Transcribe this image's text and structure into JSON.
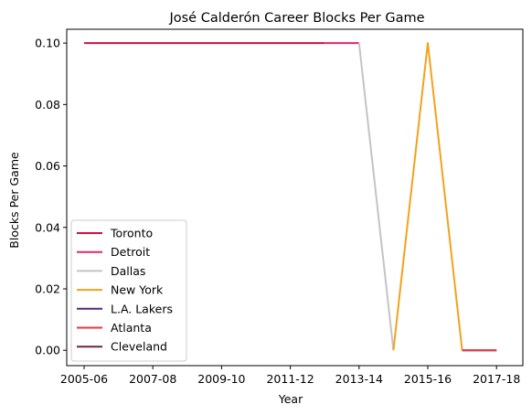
{
  "chart_data": {
    "type": "line",
    "title": "José Calderón  Career Blocks Per Game",
    "xlabel": "Year",
    "ylabel": "Blocks Per Game",
    "x_ticks": [
      "2005-06",
      "2007-08",
      "2009-10",
      "2011-12",
      "2013-14",
      "2015-16",
      "2017-18"
    ],
    "ylim": [
      -0.005,
      0.1045
    ],
    "y_ticks": [
      "0.00",
      "0.02",
      "0.04",
      "0.06",
      "0.08",
      "0.10"
    ],
    "grid": false,
    "legend_position": "lower-left",
    "series": [
      {
        "name": "Toronto",
        "color": "#ce1141",
        "points": [
          [
            "2005-06",
            0.1
          ],
          [
            "2012-13",
            0.1
          ]
        ]
      },
      {
        "name": "Detroit",
        "color": "#e0256e",
        "points": [
          [
            "2012-13",
            0.1
          ],
          [
            "2013-14",
            0.1
          ]
        ]
      },
      {
        "name": "Dallas",
        "color": "#c4c4c4",
        "points": [
          [
            "2013-14",
            0.1
          ],
          [
            "2014-15",
            0.0
          ]
        ]
      },
      {
        "name": "New York",
        "color": "#f4a11d",
        "points": [
          [
            "2014-15",
            0.0
          ],
          [
            "2015-16",
            0.1
          ],
          [
            "2016-17",
            0.0
          ]
        ]
      },
      {
        "name": "L.A. Lakers",
        "color": "#552583",
        "points": [
          [
            "2016-17",
            0.0
          ],
          [
            "2017-18",
            0.0
          ]
        ]
      },
      {
        "name": "Atlanta",
        "color": "#e03a3e",
        "points": [
          [
            "2016-17",
            0.0
          ],
          [
            "2017-18",
            0.0
          ]
        ]
      },
      {
        "name": "Cleveland",
        "color": "#6f263d",
        "points": []
      }
    ]
  }
}
